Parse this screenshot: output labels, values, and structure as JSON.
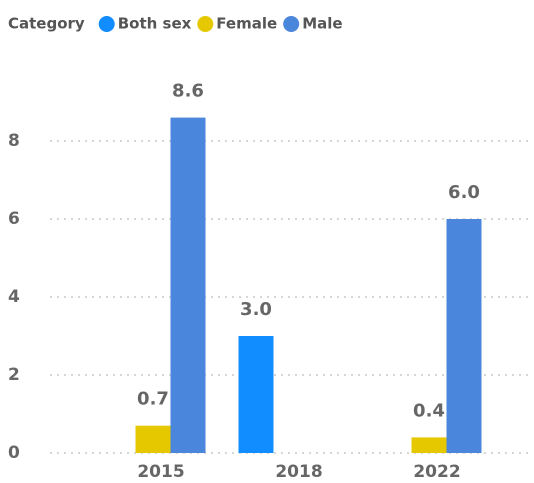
{
  "chart_data": {
    "type": "bar",
    "legend_title": "Category",
    "categories": [
      "2015",
      "2018",
      "2022"
    ],
    "series": [
      {
        "name": "Both sex",
        "color": "#118dff",
        "values": [
          null,
          3.0,
          null
        ],
        "value_labels": [
          null,
          "3.0",
          null
        ]
      },
      {
        "name": "Female",
        "color": "#e6c800",
        "values": [
          0.7,
          null,
          0.4
        ],
        "value_labels": [
          "0.7",
          null,
          "0.4"
        ]
      },
      {
        "name": "Male",
        "color": "#4a86db",
        "values": [
          8.6,
          null,
          6.0
        ],
        "value_labels": [
          "8.6",
          null,
          "6.0"
        ]
      }
    ],
    "ylim": [
      0,
      9
    ],
    "yticks": [
      0,
      2,
      4,
      6,
      8
    ],
    "grid": true,
    "legend": "top-left"
  }
}
